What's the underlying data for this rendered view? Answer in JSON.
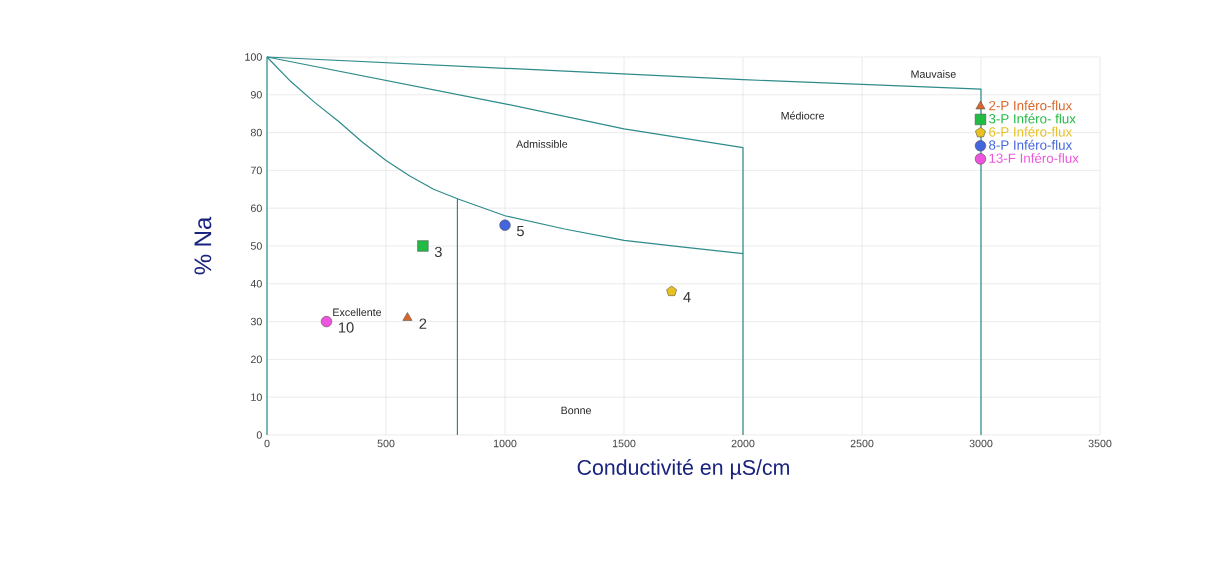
{
  "chart_data": {
    "type": "scatter",
    "xlabel": "Conductivité en µS/cm",
    "ylabel": "% Na",
    "xlim": [
      0,
      3500
    ],
    "ylim": [
      0,
      100
    ],
    "xticks": [
      0,
      500,
      1000,
      1500,
      2000,
      2500,
      3000,
      3500
    ],
    "yticks": [
      0,
      10,
      20,
      30,
      40,
      50,
      60,
      70,
      80,
      90,
      100
    ],
    "grid": true,
    "legend": "top right",
    "series": [
      {
        "type": "line",
        "color": "#2e8b8b",
        "x": [
          0,
          0,
          1000,
          2000,
          3000,
          3000
        ],
        "values": [
          0,
          100,
          97,
          94,
          91.5,
          0
        ]
      },
      {
        "type": "line",
        "color": "#2e8b8b",
        "x": [
          0,
          500,
          1000,
          1500,
          2000,
          2000
        ],
        "values": [
          100,
          93.8,
          87.6,
          81,
          76,
          0
        ]
      },
      {
        "type": "line",
        "color": "#2e8b8b",
        "x": [
          0,
          100,
          200,
          300,
          400,
          500,
          600,
          700,
          800,
          800
        ],
        "values": [
          100,
          93.5,
          88,
          83,
          77.5,
          72.6,
          68.5,
          65,
          62.5,
          0
        ]
      },
      {
        "type": "line",
        "color": "#2e8b8b",
        "x": [
          800,
          1000,
          1250,
          1500,
          1750,
          2000
        ],
        "values": [
          62.5,
          58,
          54.5,
          51.5,
          49.7,
          48
        ]
      },
      {
        "name": "2-P Inféro-flux",
        "color": "#d9662a",
        "marker": "triangle",
        "x": [
          590
        ],
        "values": [
          31
        ]
      },
      {
        "name": "3-P Inféro- flux",
        "color": "#22bb44",
        "marker": "square",
        "x": [
          655
        ],
        "values": [
          50
        ]
      },
      {
        "name": "6-P Inféro-flux",
        "color": "#e8c020",
        "x": [
          1700
        ],
        "values": [
          38
        ]
      },
      {
        "name": "8-P Inféro-flux",
        "color": "#4466dd",
        "marker": "circle",
        "x": [
          1000
        ],
        "values": [
          55.5
        ]
      },
      {
        "name": "13-F Inféro-flux",
        "color": "#ee55dd",
        "marker": "circle",
        "x": [
          250
        ],
        "values": [
          30
        ]
      }
    ],
    "annotations": [
      "Mauvaise",
      "Médiocre",
      "Admissible",
      "Bonne",
      "Excellente",
      {
        "text": "2",
        "x": 590,
        "y": 31
      },
      {
        "text": "3",
        "x": 655,
        "y": 50
      },
      {
        "text": "4",
        "x": 1700,
        "y": 38
      },
      {
        "text": "5",
        "x": 1000,
        "y": 55.5
      },
      {
        "text": "10",
        "x": 250,
        "y": 30
      }
    ]
  }
}
